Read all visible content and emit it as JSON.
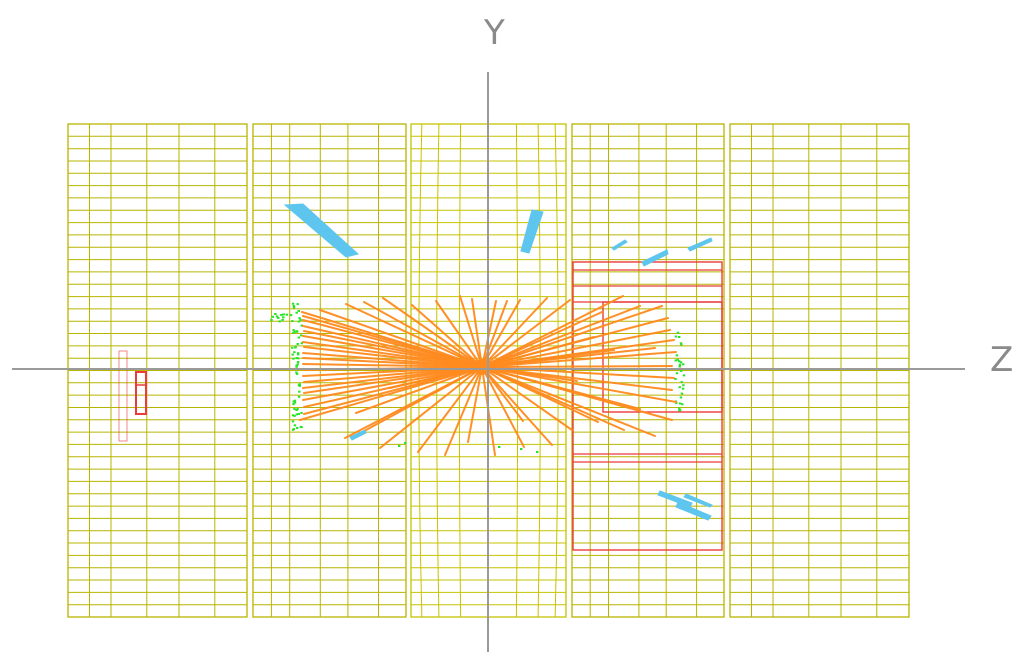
{
  "axes": {
    "vertical_label": "Y",
    "horizontal_label": "Z",
    "color": "#9a9a9a"
  },
  "colors": {
    "detector_grid": "#b8b400",
    "barrel_grid": "#c7c200",
    "tracks": "#ff8a1e",
    "calorimeter_clusters": "#5ec6ee",
    "muon_chambers": "#ec3b3b",
    "hits": "#27e42a"
  },
  "legend": []
}
